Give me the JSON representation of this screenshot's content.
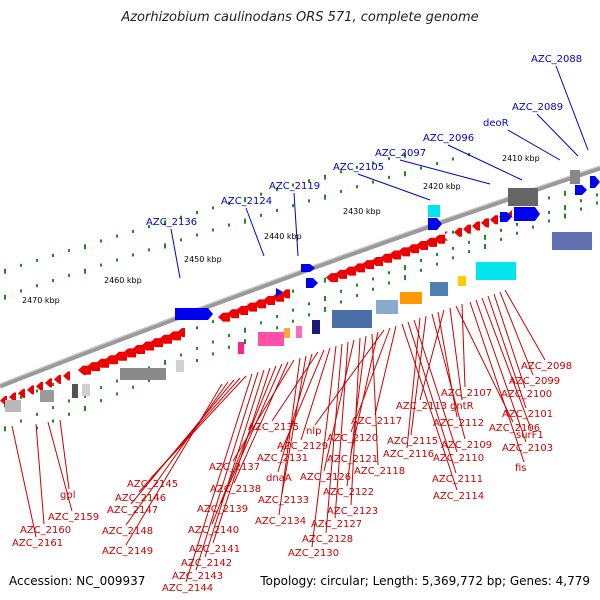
{
  "title": "Azorhizobium caulinodans ORS 571, complete genome",
  "accession": "Accession: NC_009937",
  "topology_info": "Topology: circular; Length: 5,369,772 bp; Genes: 4,779",
  "scale_labels": [
    "2410 kbp",
    "2420 kbp",
    "2430 kbp",
    "2440 kbp",
    "2450 kbp",
    "2460 kbp",
    "2470 kbp"
  ],
  "upper_labels": [
    "AZC_2088",
    "AZC_2089",
    "deoR",
    "AZC_2096",
    "AZC_2097",
    "AZC_2105",
    "AZC_2119",
    "AZC_2124",
    "AZC_2136"
  ],
  "lower_labels": [
    "AZC_2098",
    "AZC_2099",
    "AZC_2100",
    "AZC_2101",
    "surF1",
    "AZC_2103",
    "fis",
    "AZC_2107",
    "AZC_2106",
    "gntR",
    "AZC_2113",
    "AZC_2112",
    "AZC_2109",
    "AZC_2115",
    "AZC_2116",
    "AZC_2110",
    "AZC_2111",
    "AZC_2114",
    "AZC_2117",
    "AZC_2120",
    "nlp",
    "AZC_2121",
    "AZC_2118",
    "AZC_2122",
    "AZC_2123",
    "AZC_2126",
    "AZC_2127",
    "AZC_2128",
    "AZC_2130",
    "AZC_2129",
    "AZC_2131",
    "AZC_2135",
    "dnaA",
    "AZC_2133",
    "AZC_2134",
    "AZC_2137",
    "AZC_2138",
    "AZC_2139",
    "AZC_2140",
    "AZC_2141",
    "AZC_2142",
    "AZC_2143",
    "AZC_2144",
    "AZC_2145",
    "AZC_2146",
    "AZC_2147",
    "AZC_2148",
    "AZC_2149",
    "gpl",
    "AZC_2159",
    "AZC_2160",
    "AZC_2161"
  ],
  "colors": {
    "reverse_gene": "#ee0000",
    "forward_gene": "#0000ee",
    "backbone": "#8c8c8c",
    "tick": "#1a8c1a",
    "upper_label": "#0000cc",
    "lower_label": "#cc0000"
  }
}
